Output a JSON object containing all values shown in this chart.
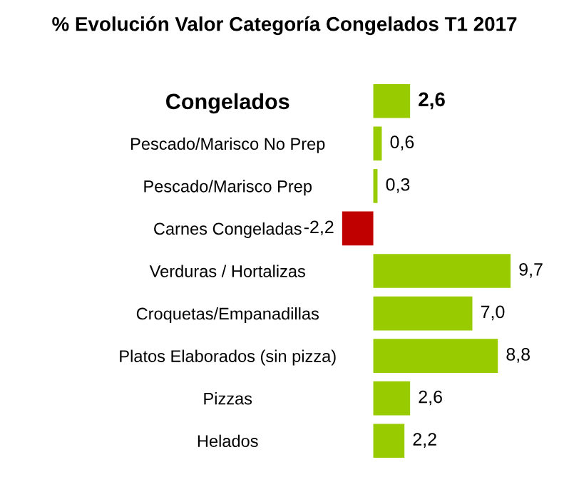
{
  "chart_data": {
    "type": "bar",
    "orientation": "horizontal",
    "title": "% Evolución Valor Categoría Congelados T1 2017",
    "categories": [
      "Congelados",
      "Pescado/Marisco No Prep",
      "Pescado/Marisco Prep",
      "Carnes Congeladas",
      "Verduras / Hortalizas",
      "Croquetas/Empanadillas",
      "Platos Elaborados (sin pizza)",
      "Pizzas",
      "Helados"
    ],
    "values": [
      2.6,
      0.6,
      0.3,
      -2.2,
      9.7,
      7.0,
      8.8,
      2.6,
      2.2
    ],
    "colors": [
      "#99cc00",
      "#99cc00",
      "#99cc00",
      "#c00000",
      "#99cc00",
      "#99cc00",
      "#99cc00",
      "#99cc00",
      "#99cc00"
    ],
    "value_labels": [
      "2,6",
      "0,6",
      "0,3",
      "-2,2",
      "9,7",
      "7,0",
      "8,8",
      "2,6",
      "2,2"
    ],
    "tick_labels": "y",
    "grid": false,
    "legend": false
  }
}
